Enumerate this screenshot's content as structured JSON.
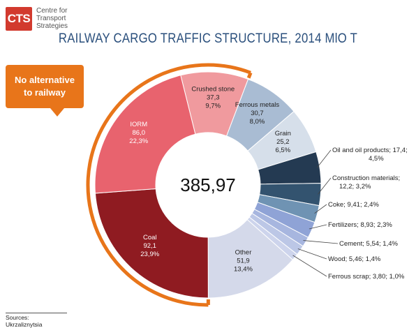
{
  "logo": {
    "mark": "CTS",
    "text": "Centre for\nTransport\nStrategies"
  },
  "callout": {
    "text": "No alternative\nto railway"
  },
  "sources": "Sources: Ukrzaliznytsia",
  "colors": {
    "orange": "#e8751a",
    "title": "#2a4f7c"
  },
  "chart_data": {
    "type": "donut",
    "title": "RAILWAY CARGO TRAFFIC STRUCTURE, 2014 MlO T",
    "total_label": "385,97",
    "series": [
      {
        "name": "Crushed stone",
        "value": 37.3,
        "value_label": "37,3",
        "share_label": "9,7%",
        "color": "#f09a9e",
        "label_style": "inside",
        "label_lines": [
          "Crushed stone",
          "37,3",
          "9,7%"
        ]
      },
      {
        "name": "Ferrous metals",
        "value": 30.7,
        "value_label": "30,7",
        "share_label": "8,0%",
        "color": "#a9bcd3",
        "label_style": "inside",
        "label_lines": [
          "Ferrous metals",
          "30,7",
          "8,0%"
        ]
      },
      {
        "name": "Grain",
        "value": 25.2,
        "value_label": "25,2",
        "share_label": "6,5%",
        "color": "#d6dfea",
        "label_style": "inside",
        "label_lines": [
          "Grain",
          "25,2",
          "6,5%"
        ]
      },
      {
        "name": "Oil and oil products",
        "value": 17.4,
        "value_label": "17,4",
        "share_label": "4,5%",
        "color": "#243a52",
        "label_style": "outside",
        "label_lines": [
          "Oil and oil products; 17,4;",
          "4,5%"
        ]
      },
      {
        "name": "Construction materials",
        "value": 12.2,
        "value_label": "12,2",
        "share_label": "3,2%",
        "color": "#33536f",
        "label_style": "outside",
        "label_lines": [
          "Construction materials;",
          "12,2; 3,2%"
        ]
      },
      {
        "name": "Coke",
        "value": 9.41,
        "value_label": "9,41",
        "share_label": "2,4%",
        "color": "#6f93b3",
        "label_style": "outside",
        "label_lines": [
          "Coke; 9,41; 2,4%"
        ]
      },
      {
        "name": "Fertilizers",
        "value": 8.93,
        "value_label": "8,93",
        "share_label": "2,3%",
        "color": "#8fa3d6",
        "label_style": "outside",
        "label_lines": [
          "Fertilizers; 8,93; 2,3%"
        ]
      },
      {
        "name": "Cement",
        "value": 5.54,
        "value_label": "5,54",
        "share_label": "1,4%",
        "color": "#a7b6df",
        "label_style": "outside",
        "label_lines": [
          "Cement; 5,54; 1,4%"
        ]
      },
      {
        "name": "Wood",
        "value": 5.46,
        "value_label": "5,46",
        "share_label": "1,4%",
        "color": "#bcc7e6",
        "label_style": "outside",
        "label_lines": [
          "Wood; 5,46; 1,4%"
        ]
      },
      {
        "name": "Ferrous scrap",
        "value": 3.8,
        "value_label": "3,80",
        "share_label": "1,0%",
        "color": "#cdd4ec",
        "label_style": "outside",
        "label_lines": [
          "Ferrous scrap; 3,80; 1,0%"
        ]
      },
      {
        "name": "Other",
        "value": 51.9,
        "value_label": "51,9",
        "share_label": "13,4%",
        "color": "#d4d9ea",
        "label_style": "inside",
        "label_lines": [
          "Other",
          "51,9",
          "13,4%"
        ]
      },
      {
        "name": "Coal",
        "value": 92.1,
        "value_label": "92,1",
        "share_label": "23,9%",
        "color": "#8f1b21",
        "label_style": "inside",
        "label_lines": [
          "Coal",
          "92,1",
          "23,9%"
        ]
      },
      {
        "name": "IORM",
        "value": 86.0,
        "value_label": "86,0",
        "share_label": "22,3%",
        "color": "#e8636e",
        "label_style": "inside",
        "label_lines": [
          "IORM",
          "86,0",
          "22,3%"
        ]
      }
    ],
    "highlighted_group": [
      "Coal",
      "IORM",
      "Crushed stone"
    ],
    "highlight_label": "No alternative to railway"
  }
}
